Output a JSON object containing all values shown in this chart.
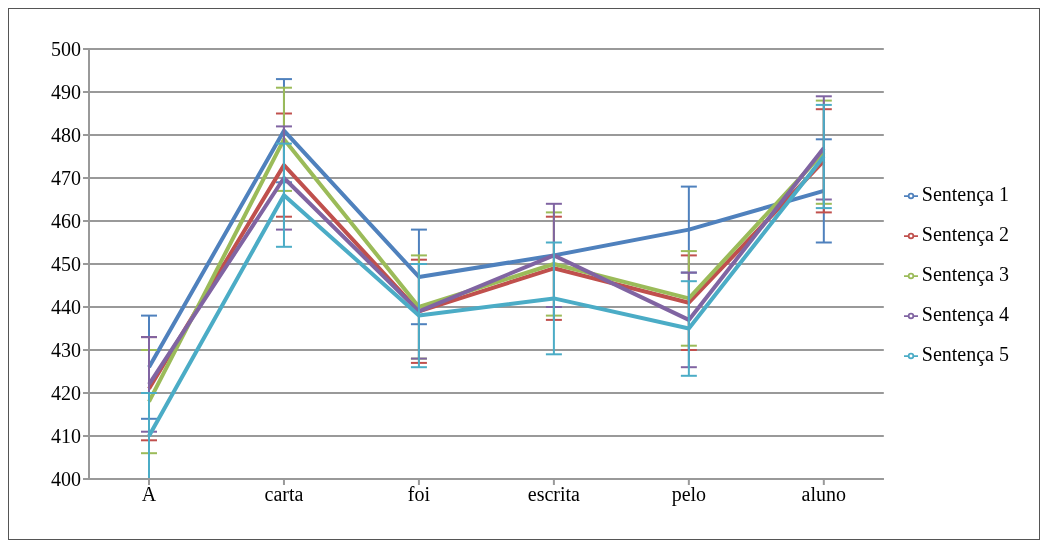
{
  "chart_data": {
    "type": "line",
    "categories": [
      "A",
      "carta",
      "foi",
      "escrita",
      "pelo",
      "aluno"
    ],
    "series": [
      {
        "name": "Sentença 1",
        "color": "#4f81bd",
        "values": [
          426,
          481,
          447,
          452,
          458,
          467
        ],
        "errors": [
          12,
          12,
          11,
          null,
          10,
          12
        ]
      },
      {
        "name": "Sentença 2",
        "color": "#c0504d",
        "values": [
          421,
          473,
          439,
          449,
          441,
          474
        ],
        "errors": [
          12,
          12,
          12,
          12,
          11,
          12
        ]
      },
      {
        "name": "Sentença 3",
        "color": "#9bbb59",
        "values": [
          418,
          479,
          440,
          450,
          442,
          476
        ],
        "errors": [
          12,
          12,
          12,
          12,
          11,
          12
        ]
      },
      {
        "name": "Sentença 4",
        "color": "#8064a2",
        "values": [
          422,
          470,
          439,
          452,
          437,
          477
        ],
        "errors": [
          11,
          12,
          11,
          12,
          11,
          12
        ]
      },
      {
        "name": "Sentença 5",
        "color": "#4bacc6",
        "values": [
          410,
          466,
          438,
          442,
          435,
          475
        ],
        "errors": [
          10,
          12,
          12,
          13,
          11,
          12
        ]
      }
    ],
    "ylim": [
      400,
      500
    ],
    "yticks": [
      400,
      410,
      420,
      430,
      440,
      450,
      460,
      470,
      480,
      490,
      500
    ],
    "grid": "y",
    "legend": "right",
    "marker": "none",
    "line_style": "solid"
  }
}
